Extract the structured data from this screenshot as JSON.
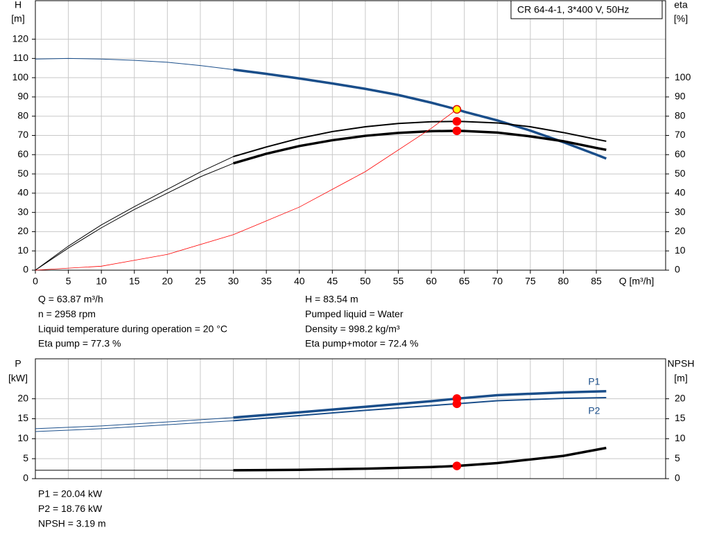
{
  "chart_data": [
    {
      "type": "line",
      "title": "CR 64-4-1, 3*400 V, 50Hz",
      "ylabel": [
        "H",
        "[m]"
      ],
      "y2label": [
        "eta",
        "[%]"
      ],
      "xlabel": "Q [m³/h]",
      "xlim": [
        0,
        95.5
      ],
      "xticks": [
        0,
        5,
        10,
        15,
        20,
        25,
        30,
        35,
        40,
        45,
        50,
        55,
        60,
        65,
        70,
        75,
        80,
        85
      ],
      "show_xtick_labels": true,
      "ylim": [
        0,
        140
      ],
      "yticks": [
        0,
        10,
        20,
        30,
        40,
        50,
        60,
        70,
        80,
        90,
        100,
        110,
        120
      ],
      "y2lim": [
        0,
        140
      ],
      "y2ticks": [
        0,
        10,
        20,
        30,
        40,
        50,
        60,
        70,
        80,
        90,
        100
      ],
      "grid": true,
      "series": [
        {
          "color": "#1a4e8a",
          "line_width": 1,
          "x": [
            0,
            5,
            10,
            15,
            20,
            25,
            30
          ],
          "values": [
            109.7,
            110,
            109.7,
            109,
            108,
            106.3,
            104.2
          ]
        },
        {
          "color": "#1a4e8a",
          "line_width": 3.5,
          "x": [
            30,
            35,
            40,
            45,
            50,
            55,
            60,
            63.87,
            65,
            70,
            75,
            80,
            85,
            86.5
          ],
          "values": [
            104.2,
            102,
            99.6,
            97,
            94.2,
            91,
            87,
            83.54,
            82.3,
            77.8,
            72.5,
            66.5,
            60,
            58
          ]
        },
        {
          "color": "#000000",
          "line_width": 1,
          "axis": "y2",
          "x": [
            0,
            5,
            10,
            15,
            20,
            25,
            30
          ],
          "values": [
            0,
            12.5,
            23.5,
            33,
            42,
            51,
            59
          ]
        },
        {
          "color": "#000000",
          "line_width": 2,
          "axis": "y2",
          "x": [
            30,
            35,
            40,
            45,
            50,
            55,
            60,
            63.87,
            65,
            70,
            75,
            80,
            85,
            86.5
          ],
          "values": [
            59,
            64,
            68.5,
            72,
            74.5,
            76.2,
            77.1,
            77.3,
            77.2,
            76.5,
            74.5,
            71.5,
            68,
            67
          ]
        },
        {
          "color": "#000000",
          "line_width": 1,
          "axis": "y2",
          "x": [
            0,
            5,
            10,
            15,
            20,
            25,
            30
          ],
          "values": [
            0,
            11.5,
            22,
            31.5,
            40,
            48.5,
            55.5
          ]
        },
        {
          "color": "#000000",
          "line_width": 3.5,
          "axis": "y2",
          "x": [
            30,
            35,
            40,
            45,
            50,
            55,
            60,
            63.87,
            65,
            70,
            75,
            80,
            85,
            86.5
          ],
          "values": [
            55.5,
            60.5,
            64.5,
            67.5,
            69.8,
            71.3,
            72.2,
            72.4,
            72.3,
            71.5,
            69.5,
            67,
            63.5,
            62.5
          ]
        },
        {
          "color": "#ff0000",
          "line_width": 0.8,
          "x": [
            0,
            10,
            20,
            30,
            40,
            50,
            60,
            63.87
          ],
          "values": [
            0,
            2.05,
            8.19,
            18.43,
            32.77,
            51.2,
            73.72,
            83.54
          ]
        }
      ],
      "points": [
        {
          "x": 63.87,
          "y": 77.3,
          "axis": "y2",
          "color": "#ff0000",
          "edge": "#ff0000"
        },
        {
          "x": 63.87,
          "y": 72.4,
          "axis": "y2",
          "color": "#ff0000",
          "edge": "#ff0000"
        },
        {
          "x": 63.87,
          "y": 83.54,
          "color": "#ffff00",
          "edge": "#e00000"
        }
      ],
      "annotations": [
        [
          "Q = 63.87 m³/h",
          "n = 2958 rpm",
          "Liquid temperature during operation = 20 °C",
          "Eta pump = 77.3 %"
        ],
        [
          "H = 83.54 m",
          "Pumped liquid = Water",
          "Density = 998.2 kg/m³",
          "Eta pump+motor = 72.4 %"
        ]
      ]
    },
    {
      "type": "line",
      "ylabel": [
        "P",
        "[kW]"
      ],
      "y2label": [
        "NPSH",
        "[m]"
      ],
      "xlim": [
        0,
        95.5
      ],
      "xticks": [
        0,
        5,
        10,
        15,
        20,
        25,
        30,
        35,
        40,
        45,
        50,
        55,
        60,
        65,
        70,
        75,
        80,
        85
      ],
      "show_xtick_labels": false,
      "ylim": [
        0,
        30
      ],
      "yticks": [
        0,
        5,
        10,
        15,
        20
      ],
      "y2lim": [
        0,
        30
      ],
      "y2ticks": [
        0,
        5,
        10,
        15,
        20
      ],
      "grid": true,
      "series": [
        {
          "color": "#1a4e8a",
          "line_width": 1,
          "x": [
            0,
            10,
            20,
            30
          ],
          "values": [
            12.5,
            13.2,
            14.2,
            15.3
          ]
        },
        {
          "name": "P1",
          "color": "#1a4e8a",
          "line_width": 3.5,
          "x": [
            30,
            40,
            50,
            60,
            63.87,
            70,
            80,
            86.5
          ],
          "values": [
            15.3,
            16.6,
            18,
            19.4,
            20.04,
            20.9,
            21.6,
            21.9
          ]
        },
        {
          "color": "#1a4e8a",
          "line_width": 1,
          "x": [
            0,
            10,
            20,
            30
          ],
          "values": [
            11.8,
            12.5,
            13.5,
            14.5
          ]
        },
        {
          "name": "P2",
          "color": "#1a4e8a",
          "line_width": 2,
          "x": [
            30,
            40,
            50,
            60,
            63.87,
            70,
            80,
            86.5
          ],
          "values": [
            14.5,
            15.8,
            17.1,
            18.3,
            18.76,
            19.5,
            20.1,
            20.3
          ]
        },
        {
          "color": "#000000",
          "line_width": 1,
          "axis": "y2",
          "x": [
            0,
            30
          ],
          "values": [
            2.1,
            2.1
          ]
        },
        {
          "color": "#000000",
          "line_width": 3.5,
          "axis": "y2",
          "x": [
            30,
            40,
            50,
            60,
            63.87,
            70,
            80,
            86.5
          ],
          "values": [
            2.1,
            2.2,
            2.5,
            2.9,
            3.19,
            3.9,
            5.7,
            7.7
          ]
        }
      ],
      "points": [
        {
          "x": 63.87,
          "y": 20.04,
          "color": "#ff0000",
          "edge": "#ff0000"
        },
        {
          "x": 63.87,
          "y": 18.76,
          "color": "#ff0000",
          "edge": "#ff0000"
        },
        {
          "x": 63.87,
          "y": 3.19,
          "axis": "y2",
          "color": "#ff0000",
          "edge": "#ff0000"
        }
      ],
      "annotations": [
        [
          "P1 = 20.04 kW",
          "P2 = 18.76 kW",
          "NPSH = 3.19 m"
        ]
      ]
    }
  ]
}
